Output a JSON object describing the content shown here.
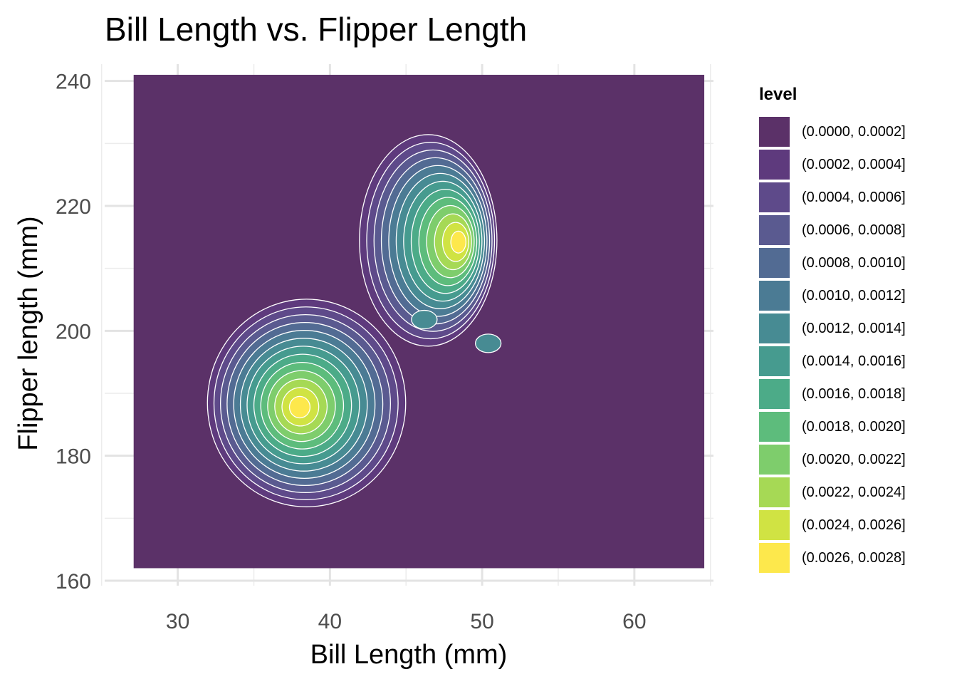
{
  "title": "Bill Length vs. Flipper Length",
  "legend": {
    "title": "level",
    "items": [
      {
        "label": "(0.0000, 0.0002]",
        "color": "#5b3168"
      },
      {
        "label": "(0.0002, 0.0004]",
        "color": "#5e3a7d"
      },
      {
        "label": "(0.0004, 0.0006]",
        "color": "#5e4a8a"
      },
      {
        "label": "(0.0006, 0.0008]",
        "color": "#5a5a90"
      },
      {
        "label": "(0.0008, 0.0010]",
        "color": "#526b93"
      },
      {
        "label": "(0.0010, 0.0012]",
        "color": "#4b7b94"
      },
      {
        "label": "(0.0012, 0.0014]",
        "color": "#478b93"
      },
      {
        "label": "(0.0014, 0.0016]",
        "color": "#469b8f"
      },
      {
        "label": "(0.0016, 0.0018]",
        "color": "#4cab88"
      },
      {
        "label": "(0.0018, 0.0020]",
        "color": "#5dbc7c"
      },
      {
        "label": "(0.0020, 0.0022]",
        "color": "#7ecd6c"
      },
      {
        "label": "(0.0022, 0.0024]",
        "color": "#a6d955"
      },
      {
        "label": "(0.0024, 0.0026]",
        "color": "#d0e343"
      },
      {
        "label": "(0.0026, 0.0028]",
        "color": "#fde84c"
      }
    ]
  },
  "chart_data": {
    "type": "density contour (filled)",
    "title": "Bill Length vs. Flipper Length",
    "xlabel": "Bill Length (mm)",
    "ylabel": "Flipper length (mm)",
    "xlim": [
      25.2,
      65.2
    ],
    "ylim": [
      159.2,
      242.7
    ],
    "x_ticks": [
      30,
      40,
      50,
      60
    ],
    "y_ticks": [
      160,
      180,
      200,
      220,
      240
    ],
    "grid": true,
    "legend_position": "right",
    "fill_extent": {
      "x": [
        27.1,
        64.6
      ],
      "y": [
        162,
        241
      ]
    },
    "peaks": [
      {
        "x": 38.5,
        "y": 188.5,
        "level": "(0.0026, 0.0028]"
      },
      {
        "x": 46.3,
        "y": 214.5,
        "level": "(0.0024, 0.0026]"
      }
    ],
    "local_bumps": [
      {
        "x": 46.2,
        "y": 201.8
      },
      {
        "x": 50.4,
        "y": 198.0
      }
    ]
  }
}
